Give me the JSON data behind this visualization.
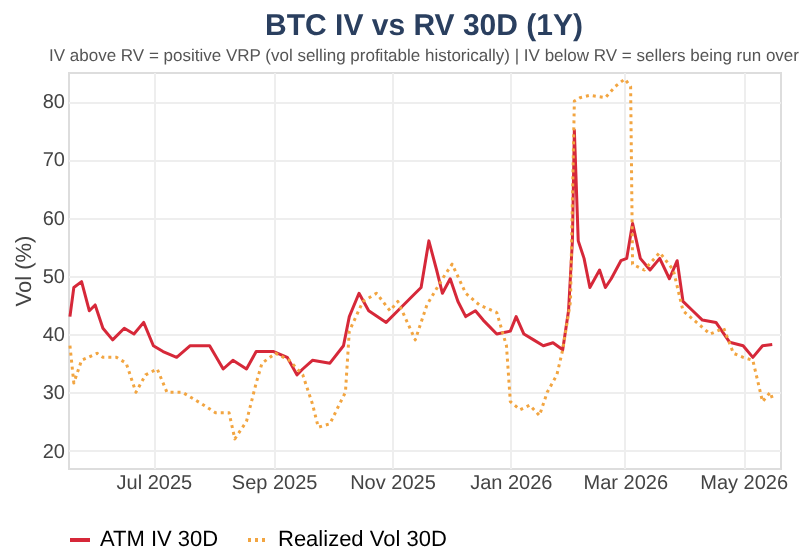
{
  "chart_data": {
    "type": "line",
    "title": "BTC IV vs RV 30D (1Y)",
    "subtitle": "IV above RV = positive VRP (vol selling profitable historically) | IV below RV = sellers being run over",
    "ylabel": "Vol (%)",
    "xlim": [
      "2025-05-18",
      "2026-05-20"
    ],
    "ylim": [
      17,
      85
    ],
    "yticks": [
      20,
      30,
      40,
      50,
      60,
      70,
      80
    ],
    "xticks": [
      {
        "value": "2025-07-01",
        "label": "Jul 2025"
      },
      {
        "value": "2025-09-01",
        "label": "Sep 2025"
      },
      {
        "value": "2025-11-01",
        "label": "Nov 2025"
      },
      {
        "value": "2026-01-01",
        "label": "Jan 2026"
      },
      {
        "value": "2026-03-01",
        "label": "Mar 2026"
      },
      {
        "value": "2026-05-01",
        "label": "May 2026"
      }
    ],
    "grid": true,
    "legend": "bottom",
    "series": [
      {
        "name": "ATM IV 30D",
        "color": "#d62839",
        "line_style": "solid",
        "x": [
          "2025-05-19",
          "2025-05-21",
          "2025-05-25",
          "2025-05-29",
          "2025-06-01",
          "2025-06-05",
          "2025-06-10",
          "2025-06-16",
          "2025-06-21",
          "2025-06-26",
          "2025-07-01",
          "2025-07-06",
          "2025-07-13",
          "2025-07-20",
          "2025-07-30",
          "2025-08-06",
          "2025-08-11",
          "2025-08-18",
          "2025-08-23",
          "2025-09-01",
          "2025-09-08",
          "2025-09-13",
          "2025-09-16",
          "2025-09-21",
          "2025-09-30",
          "2025-10-07",
          "2025-10-10",
          "2025-10-15",
          "2025-10-20",
          "2025-10-29",
          "2025-11-04",
          "2025-11-13",
          "2025-11-16",
          "2025-11-20",
          "2025-11-24",
          "2025-11-27",
          "2025-12-01",
          "2025-12-05",
          "2025-12-09",
          "2025-12-14",
          "2025-12-18",
          "2025-12-25",
          "2026-01-01",
          "2026-01-04",
          "2026-01-08",
          "2026-01-13",
          "2026-01-18",
          "2026-01-23",
          "2026-01-28",
          "2026-01-31",
          "2026-02-02",
          "2026-02-03",
          "2026-02-05",
          "2026-02-08",
          "2026-02-11",
          "2026-02-16",
          "2026-02-19",
          "2026-02-22",
          "2026-02-27",
          "2026-03-02",
          "2026-03-05",
          "2026-03-09",
          "2026-03-14",
          "2026-03-19",
          "2026-03-24",
          "2026-03-28",
          "2026-03-31",
          "2026-04-05",
          "2026-04-10",
          "2026-04-17",
          "2026-04-24",
          "2026-05-01",
          "2026-05-06",
          "2026-05-11",
          "2026-05-16"
        ],
        "values": [
          43,
          48,
          49,
          44,
          45,
          41,
          39,
          41,
          40,
          42,
          38,
          37,
          36,
          38,
          38,
          34,
          35.5,
          34,
          37,
          37,
          36,
          33,
          34,
          35.5,
          35,
          38,
          43,
          47,
          44,
          42,
          44,
          47,
          48,
          56,
          51,
          47,
          49.5,
          45.6,
          43,
          44,
          42.4,
          40,
          40.5,
          43,
          40,
          39,
          38,
          38.5,
          37.3,
          44,
          56,
          75,
          56,
          53,
          48,
          51,
          48,
          49.5,
          52.6,
          53,
          59,
          53,
          51,
          53,
          49.5,
          52.6,
          45.6,
          44,
          42.4,
          42,
          38.6,
          38,
          36,
          38,
          38.2
        ]
      },
      {
        "name": "Realized Vol 30D",
        "color": "#f2a541",
        "line_style": "dotted",
        "x": [
          "2025-05-19",
          "2025-05-21",
          "2025-05-25",
          "2025-06-02",
          "2025-06-05",
          "2025-06-12",
          "2025-06-17",
          "2025-06-22",
          "2025-06-27",
          "2025-07-03",
          "2025-07-08",
          "2025-07-16",
          "2025-07-26",
          "2025-08-02",
          "2025-08-09",
          "2025-08-12",
          "2025-08-18",
          "2025-08-23",
          "2025-08-26",
          "2025-09-02",
          "2025-09-09",
          "2025-09-16",
          "2025-09-21",
          "2025-09-24",
          "2025-09-30",
          "2025-10-05",
          "2025-10-08",
          "2025-10-10",
          "2025-10-17",
          "2025-10-24",
          "2025-10-31",
          "2025-11-04",
          "2025-11-13",
          "2025-11-13",
          "2025-11-19",
          "2025-11-27",
          "2025-12-02",
          "2025-12-09",
          "2025-12-16",
          "2025-12-25",
          "2025-12-30",
          "2026-01-01",
          "2026-01-06",
          "2026-01-11",
          "2026-01-16",
          "2026-01-20",
          "2026-01-25",
          "2026-01-28",
          "2026-02-01",
          "2026-02-03",
          "2026-02-06",
          "2026-02-11",
          "2026-02-19",
          "2026-02-24",
          "2026-03-01",
          "2026-03-04",
          "2026-03-05",
          "2026-03-11",
          "2026-03-19",
          "2026-03-26",
          "2026-03-31",
          "2026-04-07",
          "2026-04-14",
          "2026-04-21",
          "2026-04-26",
          "2026-05-01",
          "2026-05-06",
          "2026-05-11",
          "2026-05-15",
          "2026-05-16"
        ],
        "values": [
          38,
          31.6,
          35.5,
          36.7,
          36,
          36,
          35,
          30,
          33,
          34,
          30,
          30,
          28,
          26.5,
          26.5,
          22,
          25,
          31.6,
          35,
          36.7,
          35.5,
          33,
          28,
          24,
          24.6,
          28,
          30,
          40.5,
          45.6,
          47,
          44,
          45.6,
          39,
          39,
          45,
          49.5,
          52,
          47,
          45,
          43.7,
          38,
          28.4,
          27,
          27.8,
          26,
          30,
          33,
          37.3,
          45.6,
          80,
          80.6,
          81,
          80.6,
          82.5,
          83.8,
          82.5,
          52,
          51,
          54,
          51,
          44,
          42,
          40,
          41,
          36.7,
          36,
          35.5,
          28.4,
          30,
          29
        ]
      }
    ]
  }
}
